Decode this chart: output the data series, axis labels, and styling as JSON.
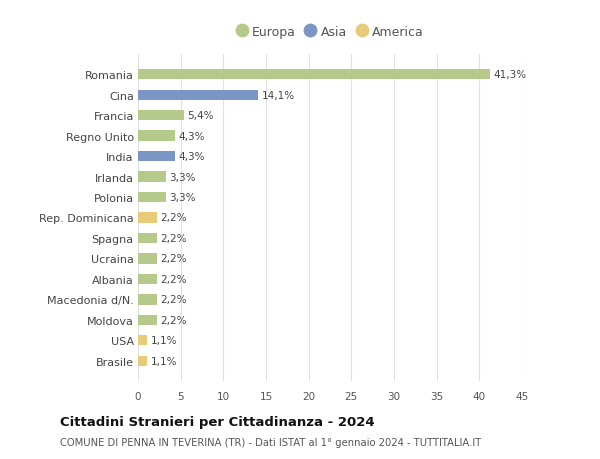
{
  "categories": [
    "Brasile",
    "USA",
    "Moldova",
    "Macedonia d/N.",
    "Albania",
    "Ucraina",
    "Spagna",
    "Rep. Dominicana",
    "Polonia",
    "Irlanda",
    "India",
    "Regno Unito",
    "Francia",
    "Cina",
    "Romania"
  ],
  "values": [
    1.1,
    1.1,
    2.2,
    2.2,
    2.2,
    2.2,
    2.2,
    2.2,
    3.3,
    3.3,
    4.3,
    4.3,
    5.4,
    14.1,
    41.3
  ],
  "labels": [
    "1,1%",
    "1,1%",
    "2,2%",
    "2,2%",
    "2,2%",
    "2,2%",
    "2,2%",
    "2,2%",
    "3,3%",
    "3,3%",
    "4,3%",
    "4,3%",
    "5,4%",
    "14,1%",
    "41,3%"
  ],
  "continent": [
    "America",
    "America",
    "Europa",
    "Europa",
    "Europa",
    "Europa",
    "Europa",
    "America",
    "Europa",
    "Europa",
    "Asia",
    "Europa",
    "Europa",
    "Asia",
    "Europa"
  ],
  "bar_colors": [
    "#e8cb78",
    "#e8cb78",
    "#b5c98a",
    "#b5c98a",
    "#b5c98a",
    "#b5c98a",
    "#b5c98a",
    "#e8cb78",
    "#b5c98a",
    "#b5c98a",
    "#7b96c4",
    "#b5c98a",
    "#b5c98a",
    "#7b96c4",
    "#b5c98a"
  ],
  "xlim": [
    0,
    45
  ],
  "xticks": [
    0,
    5,
    10,
    15,
    20,
    25,
    30,
    35,
    40,
    45
  ],
  "title": "Cittadini Stranieri per Cittadinanza - 2024",
  "subtitle": "COMUNE DI PENNA IN TEVERINA (TR) - Dati ISTAT al 1° gennaio 2024 - TUTTITALIA.IT",
  "legend_labels": [
    "Europa",
    "Asia",
    "America"
  ],
  "legend_colors": [
    "#b5c98a",
    "#7b96c4",
    "#e8cb78"
  ],
  "background_color": "#ffffff",
  "grid_color": "#e0e0e0"
}
